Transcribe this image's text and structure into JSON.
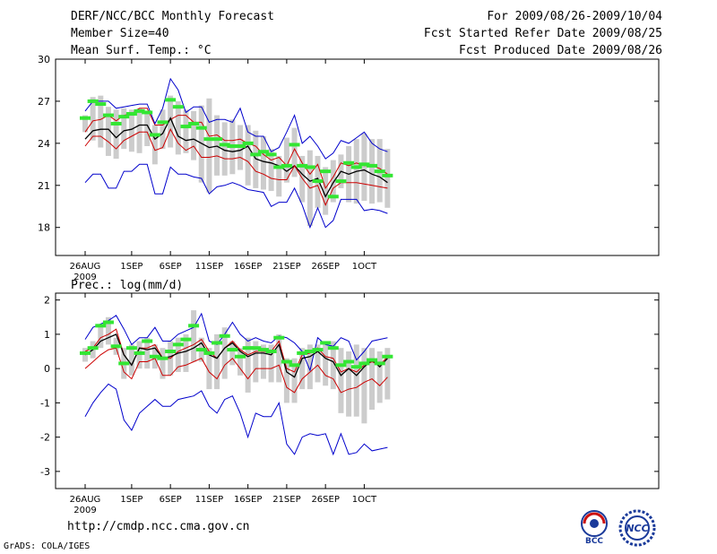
{
  "header": {
    "title": "DERF/NCC/BCC Monthly Forecast",
    "member_size": "Member Size=40",
    "variable": "Mean Surf. Temp.: °C",
    "forecast_period": "For 2009/08/26-2009/10/04",
    "started_refer": "Fcst Started Refer Date 2009/08/25",
    "produced": "Fcst Produced Date 2009/08/26"
  },
  "footer": {
    "url": "http://cmdp.ncc.cma.gov.cn",
    "credit": "GrADS: COLA/IGES",
    "logo_bcc": "BCC",
    "logo_ncc": "NCC"
  },
  "colors": {
    "max_line": "#0000cc",
    "min_line": "#0000cc",
    "upper_line": "#cc0000",
    "lower_line": "#cc0000",
    "mean_line": "#000000",
    "obs_marker": "#33e633",
    "spread_bar": "#cccccc"
  },
  "chart_data": [
    {
      "type": "line",
      "title": "Mean Surf. Temp.: °C",
      "ylim": [
        16,
        30
      ],
      "yticks": [
        18,
        21,
        24,
        27,
        30
      ],
      "x_tick_labels": [
        "26AUG",
        "1SEP",
        "6SEP",
        "11SEP",
        "16SEP",
        "21SEP",
        "26SEP",
        "1OCT"
      ],
      "x_tick_days": [
        0,
        6,
        11,
        16,
        21,
        26,
        31,
        36
      ],
      "year_label": "2009",
      "days": 40,
      "series": [
        {
          "name": "max",
          "values": [
            21.2,
            21.8,
            21.8,
            20.8,
            20.8,
            22.0,
            22.0,
            22.5,
            22.5,
            20.4,
            20.4,
            22.3,
            21.8,
            21.8,
            21.6,
            21.5,
            20.4,
            20.9,
            21.0,
            21.2,
            21.0,
            20.7,
            20.6,
            20.5,
            19.5,
            19.8,
            19.8,
            20.8,
            19.6,
            18.0,
            19.4,
            18.0,
            18.5,
            20.0,
            20.0,
            20.0,
            19.2,
            19.3,
            19.2,
            19.0
          ]
        },
        {
          "name": "lower",
          "values": [
            24.8,
            25.6,
            25.7,
            26.0,
            25.6,
            26.0,
            26.1,
            26.5,
            26.5,
            25.3,
            25.3,
            25.7,
            26.0,
            26.0,
            25.5,
            25.5,
            24.5,
            24.6,
            24.2,
            24.2,
            24.3,
            24.0,
            23.8,
            23.2,
            22.8,
            23.0,
            22.4,
            23.6,
            22.6,
            21.8,
            22.5,
            20.8,
            21.6,
            22.6,
            22.4,
            22.6,
            22.4,
            22.4,
            22.2,
            21.8
          ]
        },
        {
          "name": "mean",
          "values": [
            24.3,
            24.9,
            25.0,
            25.0,
            24.4,
            24.9,
            25.0,
            25.3,
            25.3,
            24.3,
            24.7,
            25.8,
            24.5,
            24.2,
            24.3,
            24.0,
            23.7,
            23.8,
            23.5,
            23.4,
            23.5,
            23.8,
            22.9,
            22.7,
            22.6,
            22.4,
            22.0,
            22.4,
            21.8,
            21.3,
            21.5,
            20.2,
            21.2,
            22.0,
            21.8,
            22.0,
            22.1,
            21.8,
            21.6,
            21.2
          ]
        },
        {
          "name": "upper",
          "values": [
            23.8,
            24.5,
            24.5,
            24.1,
            23.6,
            24.2,
            24.5,
            24.8,
            24.8,
            23.5,
            23.7,
            25.0,
            24.0,
            23.5,
            23.8,
            23.0,
            23.0,
            23.1,
            22.9,
            22.9,
            23.0,
            22.7,
            22.0,
            21.8,
            21.5,
            21.4,
            21.4,
            22.4,
            21.5,
            20.8,
            21.0,
            19.6,
            20.8,
            21.2,
            21.2,
            21.2,
            21.1,
            21.0,
            20.9,
            20.8
          ]
        },
        {
          "name": "min",
          "values": [
            26.3,
            27.0,
            27.0,
            27.0,
            26.5,
            26.6,
            26.7,
            26.8,
            26.8,
            25.4,
            26.5,
            28.6,
            27.8,
            26.2,
            26.6,
            26.6,
            25.5,
            25.7,
            25.7,
            25.5,
            26.5,
            24.8,
            24.5,
            24.5,
            23.4,
            23.7,
            24.8,
            26.0,
            24.0,
            24.5,
            23.8,
            22.9,
            23.3,
            24.2,
            24.0,
            24.4,
            24.8,
            24.0,
            23.6,
            23.4
          ]
        },
        {
          "name": "obs",
          "values": [
            25.8,
            27.0,
            26.8,
            26.0,
            25.4,
            25.9,
            26.1,
            26.3,
            26.2,
            24.6,
            25.5,
            27.1,
            26.6,
            25.2,
            25.4,
            25.1,
            24.3,
            24.3,
            23.9,
            23.8,
            23.8,
            24.0,
            23.2,
            23.4,
            23.2,
            22.3,
            22.4,
            23.9,
            22.4,
            22.3,
            21.3,
            22.0,
            20.2,
            21.3,
            22.6,
            22.3,
            22.5,
            22.4,
            22.0,
            21.7
          ]
        }
      ],
      "spread_low": [
        24.8,
        24.2,
        23.7,
        23.1,
        22.9,
        23.6,
        23.4,
        23.3,
        23.8,
        22.5,
        23.6,
        23.7,
        23.2,
        23.3,
        22.8,
        21.2,
        20.5,
        21.7,
        21.7,
        21.8,
        22.1,
        21.0,
        20.8,
        20.7,
        20.6,
        20.2,
        21.2,
        21.6,
        19.8,
        18.1,
        19.4,
        18.9,
        19.8,
        20.8,
        19.8,
        19.7,
        19.9,
        19.7,
        19.8,
        19.4
      ],
      "spread_high": [
        26.0,
        27.3,
        27.4,
        26.6,
        26.4,
        26.5,
        26.4,
        26.5,
        26.3,
        25.3,
        26.4,
        27.4,
        27.0,
        26.4,
        26.3,
        26.7,
        27.2,
        26.0,
        25.5,
        25.7,
        25.3,
        25.3,
        24.9,
        24.5,
        23.6,
        23.1,
        24.4,
        25.1,
        23.1,
        23.5,
        23.1,
        22.3,
        22.8,
        23.2,
        23.8,
        24.3,
        24.7,
        24.3,
        24.3,
        23.6
      ]
    },
    {
      "type": "line",
      "title": "Prec.: log(mm/d)",
      "ylim": [
        -3.5,
        2.2
      ],
      "yticks": [
        -3,
        -2,
        -1,
        0,
        1,
        2
      ],
      "x_tick_labels": [
        "26AUG",
        "1SEP",
        "6SEP",
        "11SEP",
        "16SEP",
        "21SEP",
        "26SEP",
        "1OCT"
      ],
      "x_tick_days": [
        0,
        6,
        11,
        16,
        21,
        26,
        31,
        36
      ],
      "year_label": "2009",
      "days": 40,
      "series": [
        {
          "name": "max",
          "values": [
            0.85,
            1.2,
            1.3,
            1.4,
            1.55,
            1.15,
            0.7,
            0.9,
            0.9,
            1.2,
            0.8,
            0.8,
            1.0,
            1.1,
            1.2,
            1.6,
            0.8,
            0.7,
            1.0,
            1.35,
            1.0,
            0.8,
            0.9,
            0.8,
            0.75,
            0.95,
            0.9,
            0.75,
            0.5,
            -0.05,
            0.9,
            0.7,
            0.65,
            0.9,
            0.8,
            0.25,
            0.5,
            0.8,
            0.85,
            0.9
          ]
        },
        {
          "name": "upper",
          "values": [
            0.5,
            0.6,
            0.9,
            1.0,
            1.15,
            0.4,
            0.1,
            0.6,
            0.6,
            0.7,
            0.3,
            0.3,
            0.5,
            0.6,
            0.7,
            0.85,
            0.5,
            0.3,
            0.6,
            0.8,
            0.55,
            0.4,
            0.5,
            0.5,
            0.5,
            0.8,
            0.0,
            -0.1,
            0.4,
            0.45,
            0.6,
            0.35,
            0.3,
            -0.1,
            0.0,
            -0.1,
            0.1,
            0.2,
            0.1,
            0.35
          ]
        },
        {
          "name": "mean",
          "values": [
            0.4,
            0.55,
            0.8,
            0.9,
            1.0,
            0.4,
            0.1,
            0.6,
            0.55,
            0.6,
            0.3,
            0.35,
            0.45,
            0.5,
            0.6,
            0.75,
            0.4,
            0.3,
            0.6,
            0.75,
            0.5,
            0.35,
            0.45,
            0.45,
            0.4,
            0.7,
            -0.1,
            -0.25,
            0.3,
            0.35,
            0.5,
            0.3,
            0.2,
            -0.2,
            0.0,
            -0.2,
            0.05,
            0.25,
            0.05,
            0.3
          ]
        },
        {
          "name": "lower",
          "values": [
            0.0,
            0.2,
            0.4,
            0.55,
            0.6,
            -0.1,
            -0.3,
            0.2,
            0.2,
            0.3,
            -0.2,
            -0.2,
            0.05,
            0.1,
            0.2,
            0.3,
            -0.1,
            -0.3,
            0.1,
            0.3,
            0.0,
            -0.3,
            0.0,
            0.0,
            0.0,
            0.1,
            -0.55,
            -0.7,
            -0.3,
            -0.1,
            0.1,
            -0.2,
            -0.3,
            -0.7,
            -0.6,
            -0.55,
            -0.4,
            -0.3,
            -0.5,
            -0.25
          ]
        },
        {
          "name": "min",
          "values": [
            -1.4,
            -1.0,
            -0.7,
            -0.45,
            -0.6,
            -1.5,
            -1.8,
            -1.3,
            -1.1,
            -0.9,
            -1.1,
            -1.1,
            -0.9,
            -0.85,
            -0.8,
            -0.65,
            -1.1,
            -1.3,
            -0.9,
            -0.8,
            -1.3,
            -2.0,
            -1.3,
            -1.4,
            -1.4,
            -1.0,
            -2.2,
            -2.5,
            -2.0,
            -1.9,
            -1.95,
            -1.9,
            -2.5,
            -1.9,
            -2.5,
            -2.45,
            -2.2,
            -2.4,
            -2.35,
            -2.3
          ]
        },
        {
          "name": "obs",
          "values": [
            0.45,
            0.6,
            1.25,
            1.35,
            0.65,
            0.15,
            0.6,
            0.45,
            0.8,
            0.35,
            0.3,
            0.5,
            0.7,
            0.85,
            1.25,
            0.55,
            0.45,
            0.75,
            0.95,
            0.55,
            0.35,
            0.6,
            0.6,
            0.55,
            0.5,
            0.9,
            0.2,
            0.1,
            0.45,
            0.5,
            0.55,
            0.75,
            0.6,
            0.1,
            0.2,
            0.05,
            0.15,
            0.25,
            0.15,
            0.35
          ]
        }
      ],
      "spread_low": [
        0.2,
        0.3,
        0.6,
        0.7,
        0.4,
        -0.3,
        -0.2,
        0.0,
        0.0,
        0.0,
        -0.3,
        -0.2,
        -0.1,
        -0.1,
        0.2,
        0.2,
        -0.6,
        -0.6,
        -0.3,
        0.1,
        -0.2,
        -0.7,
        -0.4,
        -0.3,
        -0.4,
        -0.4,
        -1.0,
        -1.0,
        -0.6,
        -0.6,
        -0.4,
        -0.5,
        -0.6,
        -1.3,
        -1.4,
        -1.4,
        -1.6,
        -1.2,
        -1.0,
        -0.9
      ],
      "spread_high": [
        0.6,
        0.8,
        1.3,
        1.5,
        0.9,
        0.6,
        0.7,
        0.8,
        0.9,
        0.7,
        0.6,
        0.8,
        0.9,
        1.0,
        1.7,
        0.9,
        0.6,
        1.0,
        1.2,
        0.8,
        0.6,
        0.9,
        0.8,
        0.7,
        0.7,
        1.0,
        0.3,
        0.3,
        0.6,
        0.7,
        0.7,
        0.8,
        0.8,
        0.6,
        0.5,
        0.7,
        0.6,
        0.6,
        0.5,
        0.6
      ]
    }
  ]
}
